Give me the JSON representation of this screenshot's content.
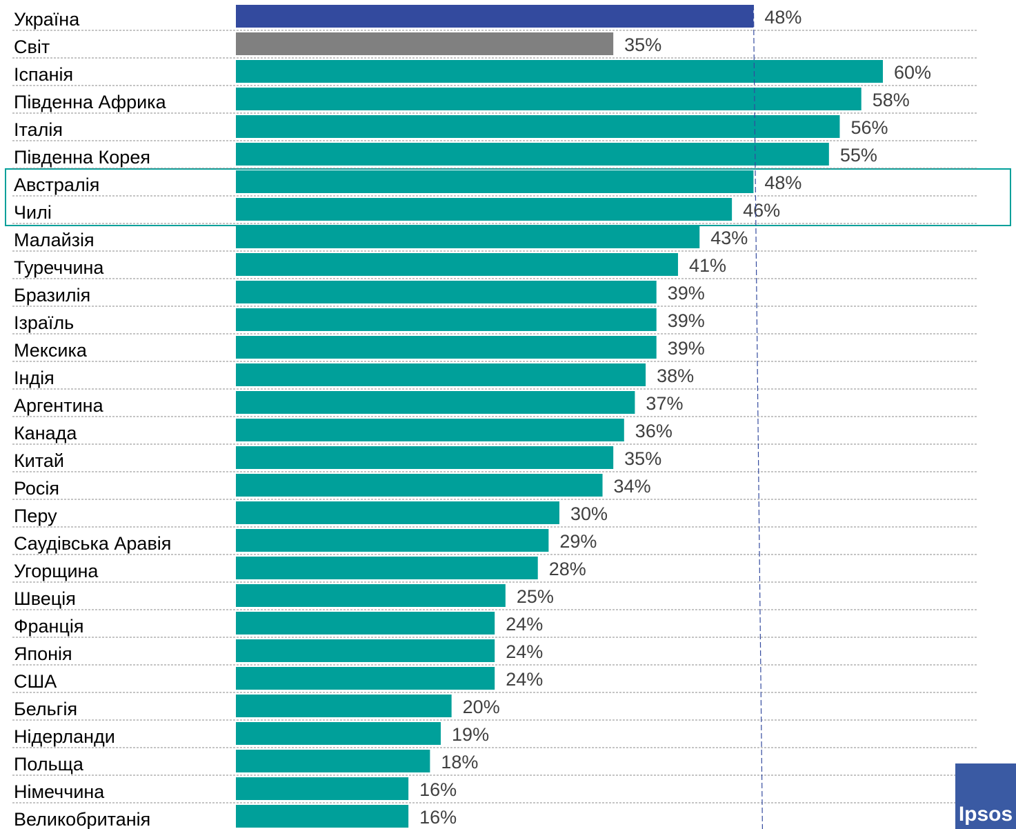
{
  "chart_data": {
    "type": "bar",
    "orientation": "horizontal",
    "categories": [
      "Україна",
      "Світ",
      "Іспанія",
      "Південна Африка",
      "Італія",
      "Південна Корея",
      "Австралія",
      "Чилі",
      "Малайзія",
      "Туреччина",
      "Бразилія",
      "Ізраїль",
      "Мексика",
      "Індія",
      "Аргентина",
      "Канада",
      "Китай",
      "Росія",
      "Перу",
      "Саудівська Аравія",
      "Угорщина",
      "Швеція",
      "Франція",
      "Японія",
      "США",
      "Бельгія",
      "Нідерланди",
      "Польща",
      "Німеччина",
      "Великобританія"
    ],
    "values": [
      48,
      35,
      60,
      58,
      56,
      55,
      48,
      46,
      43,
      41,
      39,
      39,
      39,
      38,
      37,
      36,
      35,
      34,
      30,
      29,
      28,
      25,
      24,
      24,
      24,
      20,
      19,
      18,
      16,
      16
    ],
    "value_labels": [
      "48%",
      "35%",
      "60%",
      "58%",
      "56%",
      "55%",
      "48%",
      "46%",
      "43%",
      "41%",
      "39%",
      "39%",
      "39%",
      "38%",
      "37%",
      "36%",
      "35%",
      "34%",
      "30%",
      "29%",
      "28%",
      "25%",
      "24%",
      "24%",
      "24%",
      "20%",
      "19%",
      "18%",
      "16%",
      "16%"
    ],
    "colors": [
      "#334a9e",
      "#808080",
      "#00a09a",
      "#00a09a",
      "#00a09a",
      "#00a09a",
      "#00a09a",
      "#00a09a",
      "#00a09a",
      "#00a09a",
      "#00a09a",
      "#00a09a",
      "#00a09a",
      "#00a09a",
      "#00a09a",
      "#00a09a",
      "#00a09a",
      "#00a09a",
      "#00a09a",
      "#00a09a",
      "#00a09a",
      "#00a09a",
      "#00a09a",
      "#00a09a",
      "#00a09a",
      "#00a09a",
      "#00a09a",
      "#00a09a",
      "#00a09a",
      "#00a09a"
    ],
    "xlim": [
      0,
      60
    ]
  },
  "logo": "Ipsos"
}
